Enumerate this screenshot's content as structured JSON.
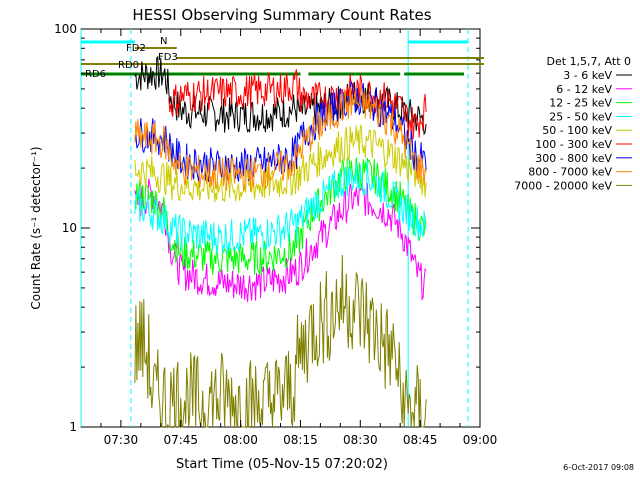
{
  "chart_data": {
    "type": "line",
    "title": "HESSI Observing Summary Count Rates",
    "xlabel": "Start Time (05-Nov-15 07:20:02)",
    "ylabel": "Count Rate (s⁻¹ detector⁻¹)",
    "yscale": "log",
    "ylim": [
      1,
      100
    ],
    "xlim_minutes": [
      440,
      540
    ],
    "x_ticks": [
      {
        "t": 450,
        "label": "07:30"
      },
      {
        "t": 465,
        "label": "07:45"
      },
      {
        "t": 480,
        "label": "08:00"
      },
      {
        "t": 495,
        "label": "08:15"
      },
      {
        "t": 510,
        "label": "08:30"
      },
      {
        "t": 525,
        "label": "08:45"
      },
      {
        "t": 540,
        "label": "09:00"
      }
    ],
    "y_ticks": [
      {
        "v": 1,
        "label": "1"
      },
      {
        "v": 10,
        "label": "10"
      },
      {
        "v": 100,
        "label": "100"
      }
    ],
    "legend_header": "Det 1,5,7, Att 0",
    "legend_position": "right",
    "series": [
      {
        "name": "3 - 6 keV",
        "color": "#000000",
        "points": [
          [
            453.5,
            58
          ],
          [
            458,
            60
          ],
          [
            461,
            59
          ],
          [
            462.5,
            45
          ],
          [
            465,
            39
          ],
          [
            470,
            38
          ],
          [
            475,
            37
          ],
          [
            480,
            37
          ],
          [
            485,
            37
          ],
          [
            490,
            38
          ],
          [
            494,
            40
          ],
          [
            495,
            38
          ],
          [
            498,
            39
          ],
          [
            502,
            41
          ],
          [
            505,
            43
          ],
          [
            508,
            46
          ],
          [
            511,
            46
          ],
          [
            514,
            44
          ],
          [
            517,
            42
          ],
          [
            520,
            39
          ],
          [
            522,
            37
          ],
          [
            524,
            36
          ],
          [
            526.5,
            35
          ]
        ]
      },
      {
        "name": "6 - 12 keV",
        "color": "#ff00ff",
        "points": [
          [
            453.5,
            13
          ],
          [
            458,
            15
          ],
          [
            461,
            12
          ],
          [
            462.5,
            8
          ],
          [
            465,
            6
          ],
          [
            470,
            5.6
          ],
          [
            475,
            5.3
          ],
          [
            480,
            5.2
          ],
          [
            485,
            5.3
          ],
          [
            490,
            5.6
          ],
          [
            494,
            6.1
          ],
          [
            495,
            6.5
          ],
          [
            498,
            8
          ],
          [
            502,
            10
          ],
          [
            505,
            12
          ],
          [
            508,
            14
          ],
          [
            511,
            14
          ],
          [
            514,
            13
          ],
          [
            517,
            12
          ],
          [
            520,
            10
          ],
          [
            522,
            8
          ],
          [
            524,
            6
          ],
          [
            526.5,
            5
          ]
        ]
      },
      {
        "name": "12 - 25 keV",
        "color": "#00ff00",
        "points": [
          [
            453.5,
            15
          ],
          [
            458,
            14
          ],
          [
            461,
            12
          ],
          [
            462.5,
            9
          ],
          [
            465,
            7.5
          ],
          [
            470,
            7.2
          ],
          [
            475,
            7
          ],
          [
            480,
            7
          ],
          [
            485,
            7.1
          ],
          [
            490,
            7.4
          ],
          [
            494,
            8
          ],
          [
            495,
            9
          ],
          [
            498,
            12
          ],
          [
            502,
            15
          ],
          [
            505,
            18
          ],
          [
            508,
            19.5
          ],
          [
            511,
            19
          ],
          [
            514,
            18
          ],
          [
            517,
            16
          ],
          [
            520,
            14
          ],
          [
            522,
            12
          ],
          [
            524,
            11
          ],
          [
            526.5,
            9.5
          ]
        ]
      },
      {
        "name": "25 - 50 keV",
        "color": "#00ffff",
        "points": [
          [
            453.5,
            13
          ],
          [
            458,
            12
          ],
          [
            461,
            11
          ],
          [
            462.5,
            10
          ],
          [
            465,
            9.5
          ],
          [
            470,
            9.2
          ],
          [
            475,
            9
          ],
          [
            480,
            9.2
          ],
          [
            485,
            9.3
          ],
          [
            490,
            9.8
          ],
          [
            494,
            10.5
          ],
          [
            495,
            11
          ],
          [
            498,
            13
          ],
          [
            502,
            15
          ],
          [
            505,
            17
          ],
          [
            508,
            18
          ],
          [
            511,
            18
          ],
          [
            514,
            17
          ],
          [
            517,
            15
          ],
          [
            520,
            13
          ],
          [
            522,
            12
          ],
          [
            524,
            11
          ],
          [
            526.5,
            10
          ]
        ]
      },
      {
        "name": "50 - 100 keV",
        "color": "#cccc00",
        "points": [
          [
            453.5,
            20
          ],
          [
            458,
            19
          ],
          [
            461,
            18
          ],
          [
            462.5,
            17
          ],
          [
            465,
            16.5
          ],
          [
            470,
            16
          ],
          [
            475,
            16
          ],
          [
            480,
            16
          ],
          [
            485,
            16.5
          ],
          [
            490,
            17
          ],
          [
            494,
            18
          ],
          [
            495,
            19
          ],
          [
            498,
            21
          ],
          [
            502,
            24
          ],
          [
            505,
            26
          ],
          [
            508,
            27
          ],
          [
            511,
            27
          ],
          [
            514,
            26
          ],
          [
            517,
            24
          ],
          [
            520,
            22
          ],
          [
            522,
            20
          ],
          [
            524,
            19
          ],
          [
            526.5,
            17
          ]
        ]
      },
      {
        "name": "100 - 300 keV",
        "color": "#ff0000",
        "points": [
          [
            462,
            42
          ],
          [
            465,
            46
          ],
          [
            470,
            47
          ],
          [
            475,
            48
          ],
          [
            480,
            48
          ],
          [
            485,
            49
          ],
          [
            490,
            50
          ],
          [
            494,
            53
          ],
          [
            495,
            46
          ],
          [
            498,
            44
          ],
          [
            502,
            45
          ],
          [
            505,
            47
          ],
          [
            508,
            49
          ],
          [
            511,
            48
          ],
          [
            514,
            46
          ],
          [
            517,
            44
          ],
          [
            520,
            40
          ],
          [
            522,
            35
          ],
          [
            524,
            33
          ],
          [
            526.5,
            40
          ]
        ]
      },
      {
        "name": "300 - 800 keV",
        "color": "#0000ff",
        "points": [
          [
            453.5,
            30
          ],
          [
            458,
            29
          ],
          [
            461,
            28
          ],
          [
            462.5,
            25
          ],
          [
            465,
            22
          ],
          [
            470,
            21
          ],
          [
            475,
            20.5
          ],
          [
            480,
            20.5
          ],
          [
            485,
            21
          ],
          [
            490,
            22
          ],
          [
            494,
            24
          ],
          [
            495,
            28
          ],
          [
            498,
            33
          ],
          [
            502,
            38
          ],
          [
            505,
            42
          ],
          [
            508,
            45
          ],
          [
            511,
            44
          ],
          [
            514,
            41
          ],
          [
            517,
            37
          ],
          [
            520,
            32
          ],
          [
            522,
            27
          ],
          [
            524,
            23
          ],
          [
            526.5,
            21
          ]
        ]
      },
      {
        "name": "800 - 7000 keV",
        "color": "#ff8800",
        "points": [
          [
            453.5,
            29
          ],
          [
            458,
            28
          ],
          [
            461,
            27
          ],
          [
            462.5,
            23
          ],
          [
            465,
            20
          ],
          [
            470,
            19
          ],
          [
            475,
            18.5
          ],
          [
            480,
            18.5
          ],
          [
            485,
            19
          ],
          [
            490,
            20
          ],
          [
            494,
            22
          ],
          [
            495,
            25
          ],
          [
            498,
            30
          ],
          [
            502,
            35
          ],
          [
            505,
            40
          ],
          [
            508,
            43
          ],
          [
            511,
            42
          ],
          [
            514,
            39
          ],
          [
            517,
            35
          ],
          [
            520,
            30
          ],
          [
            522,
            25
          ],
          [
            524,
            21
          ],
          [
            526.5,
            19
          ]
        ]
      },
      {
        "name": "7000 - 20000 keV",
        "color": "#808000",
        "points": [
          [
            453.5,
            2.5
          ],
          [
            455,
            2.8
          ],
          [
            457,
            2.2
          ],
          [
            458,
            1.4
          ],
          [
            460,
            1.4
          ],
          [
            462,
            1.3
          ],
          [
            465,
            1.4
          ],
          [
            470,
            1.3
          ],
          [
            475,
            1.4
          ],
          [
            480,
            1.3
          ],
          [
            485,
            1.3
          ],
          [
            490,
            1.4
          ],
          [
            493,
            1.6
          ],
          [
            494,
            2
          ],
          [
            496,
            2.6
          ],
          [
            498,
            3.2
          ],
          [
            502,
            3.6
          ],
          [
            505,
            4.3
          ],
          [
            508,
            4.2
          ],
          [
            511,
            3.6
          ],
          [
            514,
            3.0
          ],
          [
            517,
            2.4
          ],
          [
            519,
            2.2
          ],
          [
            520,
            1.4
          ],
          [
            522,
            1.2
          ],
          [
            524,
            1.2
          ],
          [
            526.5,
            1.1
          ]
        ]
      }
    ],
    "annotations": [
      {
        "label": "N",
        "color": "#00ffff"
      },
      {
        "label": "FD2",
        "color": "#808000"
      },
      {
        "label": "FD3",
        "color": "#808000"
      },
      {
        "label": "RD0",
        "color": "#808000"
      },
      {
        "label": "RD6",
        "color": "#008000"
      }
    ],
    "vertical_markers": [
      {
        "t": 440,
        "color": "#00ffff",
        "style": "solid"
      },
      {
        "t": 452.5,
        "color": "#00ffff",
        "style": "dashed"
      },
      {
        "t": 522,
        "color": "#00ffff",
        "style": "solid"
      },
      {
        "t": 537,
        "color": "#00ffff",
        "style": "dashed"
      }
    ]
  },
  "footer": {
    "timestamp": "6-Oct-2017 09:08"
  }
}
